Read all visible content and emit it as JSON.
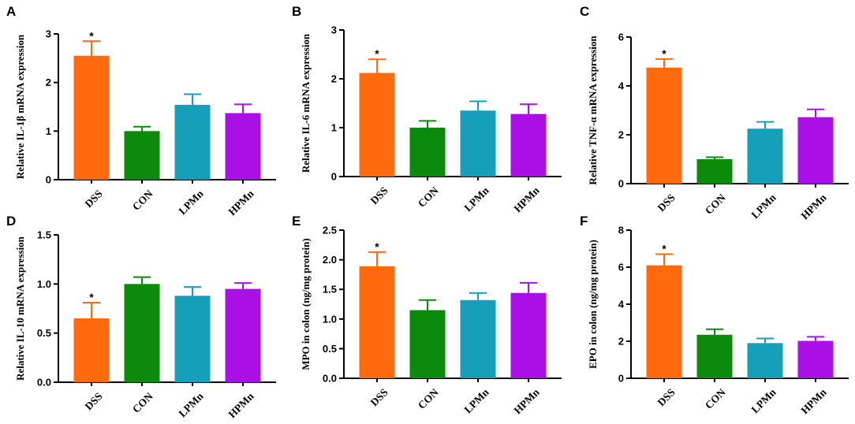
{
  "colors": {
    "DSS": "#ff6a0f",
    "CON": "#0b8a0b",
    "LPMn": "#159fb8",
    "HPMn": "#aa10e6"
  },
  "chart_data": [
    {
      "type": "bar",
      "panel": "A",
      "ylabel": "Relative IL-1β mRNA expression",
      "categories": [
        "DSS",
        "CON",
        "LPMn",
        "HPMn"
      ],
      "values": [
        2.55,
        1.0,
        1.54,
        1.37
      ],
      "errors": [
        0.3,
        0.09,
        0.22,
        0.18
      ],
      "significance": [
        "*",
        "",
        "",
        ""
      ],
      "ylim": [
        0,
        3
      ],
      "yticks": [
        0,
        1,
        2,
        3
      ],
      "ytick_labels": [
        "0",
        "1",
        "2",
        "3"
      ]
    },
    {
      "type": "bar",
      "panel": "B",
      "ylabel": "Relative IL-6 mRNA expression",
      "categories": [
        "DSS",
        "CON",
        "LPMn",
        "HPMn"
      ],
      "values": [
        2.12,
        1.0,
        1.35,
        1.28
      ],
      "errors": [
        0.28,
        0.14,
        0.19,
        0.2
      ],
      "significance": [
        "*",
        "",
        "",
        ""
      ],
      "ylim": [
        0,
        3
      ],
      "yticks": [
        0,
        1,
        2,
        3
      ],
      "ytick_labels": [
        "0",
        "1",
        "2",
        "3"
      ]
    },
    {
      "type": "bar",
      "panel": "C",
      "ylabel": "Relative TNF-α mRNA expression",
      "categories": [
        "DSS",
        "CON",
        "LPMn",
        "HPMn"
      ],
      "values": [
        4.75,
        1.0,
        2.25,
        2.72
      ],
      "errors": [
        0.35,
        0.08,
        0.28,
        0.32
      ],
      "significance": [
        "*",
        "",
        "",
        ""
      ],
      "ylim": [
        0,
        6
      ],
      "yticks": [
        0,
        2,
        4,
        6
      ],
      "ytick_labels": [
        "0",
        "2",
        "4",
        "6"
      ]
    },
    {
      "type": "bar",
      "panel": "D",
      "ylabel": "Relative IL-10 mRNA expression",
      "categories": [
        "DSS",
        "CON",
        "LPMn",
        "HPMn"
      ],
      "values": [
        0.65,
        1.0,
        0.88,
        0.95
      ],
      "errors": [
        0.16,
        0.07,
        0.09,
        0.06
      ],
      "significance": [
        "*",
        "",
        "",
        ""
      ],
      "ylim": [
        0,
        1.5
      ],
      "yticks": [
        0,
        0.5,
        1.0,
        1.5
      ],
      "ytick_labels": [
        "0.0",
        "0.5",
        "1.0",
        "1.5"
      ]
    },
    {
      "type": "bar",
      "panel": "E",
      "ylabel": "MPO in colon (ng/mg protein)",
      "categories": [
        "DSS",
        "CON",
        "LPMn",
        "HPMn"
      ],
      "values": [
        1.89,
        1.15,
        1.32,
        1.44
      ],
      "errors": [
        0.24,
        0.17,
        0.12,
        0.17
      ],
      "significance": [
        "*",
        "",
        "",
        ""
      ],
      "ylim": [
        0,
        2.5
      ],
      "yticks": [
        0,
        0.5,
        1.0,
        1.5,
        2.0,
        2.5
      ],
      "ytick_labels": [
        "0.0",
        "0.5",
        "1.0",
        "1.5",
        "2.0",
        "2.5"
      ]
    },
    {
      "type": "bar",
      "panel": "F",
      "ylabel": "EPO in colon (ng/mg protein)",
      "categories": [
        "DSS",
        "CON",
        "LPMn",
        "HPMn"
      ],
      "values": [
        6.1,
        2.35,
        1.9,
        2.02
      ],
      "errors": [
        0.6,
        0.3,
        0.25,
        0.22
      ],
      "significance": [
        "*",
        "",
        "",
        ""
      ],
      "ylim": [
        0,
        8
      ],
      "yticks": [
        0,
        2,
        4,
        6,
        8
      ],
      "ytick_labels": [
        "0",
        "2",
        "4",
        "6",
        "8"
      ]
    }
  ]
}
